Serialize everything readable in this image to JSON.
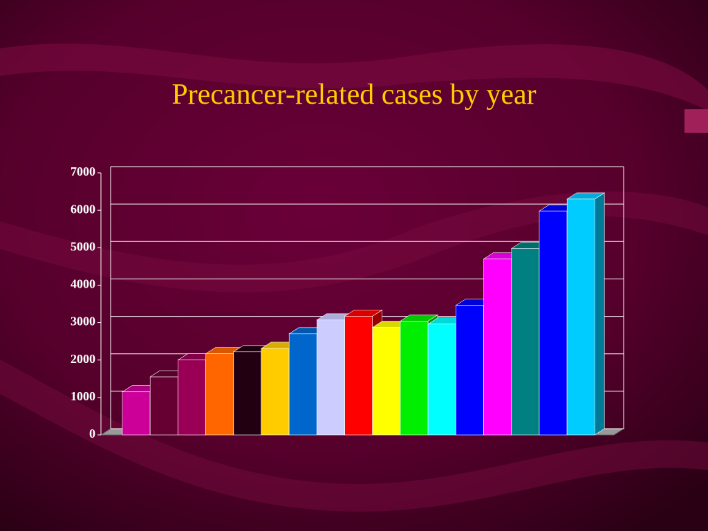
{
  "chart_data": {
    "type": "bar3d",
    "title": "Precancer-related cases by year",
    "values": [
      1150,
      1550,
      2000,
      2170,
      2220,
      2310,
      2700,
      3070,
      3170,
      2870,
      3040,
      2960,
      3460,
      4700,
      4980,
      5980,
      6300
    ],
    "colors": [
      "#cc0099",
      "#660033",
      "#990055",
      "#ff6600",
      "#220011",
      "#ffcc00",
      "#0066cc",
      "#ccccff",
      "#ff0000",
      "#ffff00",
      "#00ee00",
      "#00ffff",
      "#0000ff",
      "#ff00ff",
      "#008080",
      "#0000ff",
      "#00ccff"
    ],
    "ylim": [
      0,
      7000
    ],
    "yticks": [
      0,
      1000,
      2000,
      3000,
      4000,
      5000,
      6000,
      7000
    ],
    "grid": true
  }
}
